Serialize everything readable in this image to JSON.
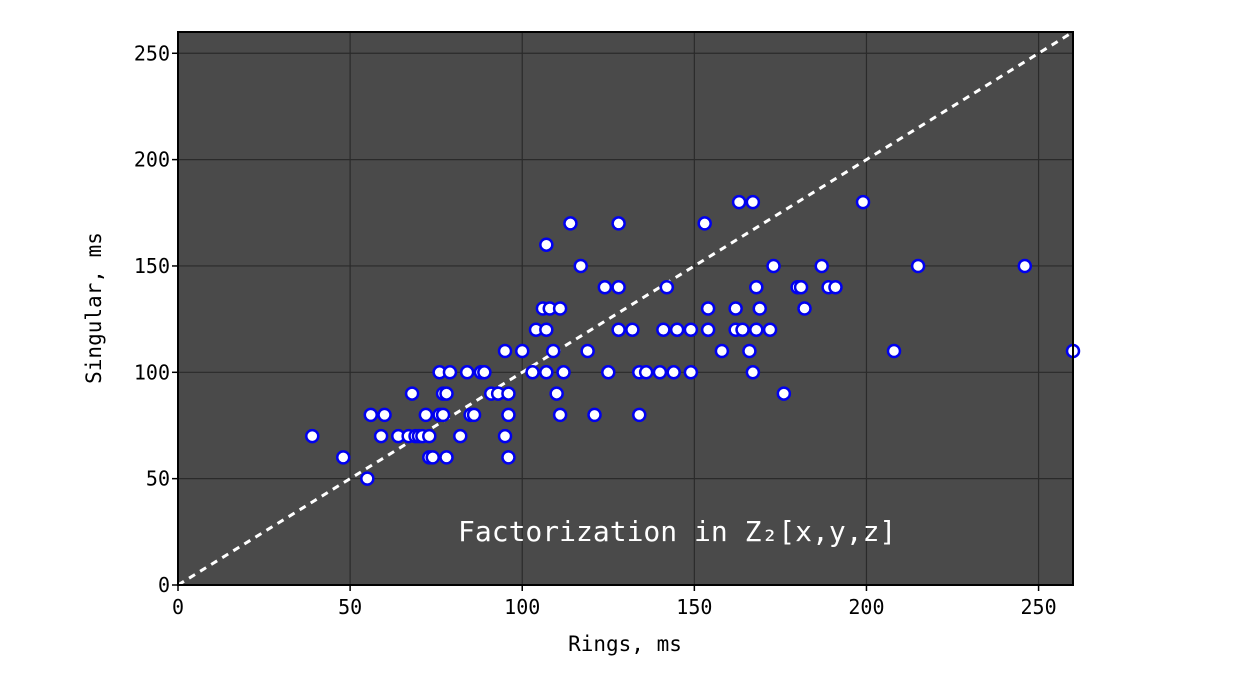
{
  "chart_data": {
    "type": "scatter",
    "xlabel": "Rings, ms",
    "ylabel": "Singular, ms",
    "annotation": "Factorization in Z₂[x,y,z]",
    "xlim": [
      0,
      260
    ],
    "ylim": [
      0,
      260
    ],
    "xticks": [
      "0",
      "50",
      "100",
      "150",
      "200",
      "250"
    ],
    "yticks": [
      "0",
      "50",
      "100",
      "150",
      "200",
      "250"
    ],
    "grid": true,
    "reference_line": "y = x",
    "colors": {
      "background": "#4a4a4a",
      "grid": "#2a2a2a",
      "marker_fill": "#ffffff",
      "marker_edge": "#0000ee",
      "reference_line": "#ffffff"
    },
    "points": [
      [
        39,
        70
      ],
      [
        48,
        60
      ],
      [
        55,
        50
      ],
      [
        56,
        80
      ],
      [
        59,
        70
      ],
      [
        60,
        80
      ],
      [
        64,
        70
      ],
      [
        67,
        70
      ],
      [
        68,
        90
      ],
      [
        69,
        70
      ],
      [
        70,
        70
      ],
      [
        71,
        70
      ],
      [
        72,
        80
      ],
      [
        73,
        70
      ],
      [
        73,
        60
      ],
      [
        74,
        60
      ],
      [
        76,
        100
      ],
      [
        76,
        80
      ],
      [
        77,
        90
      ],
      [
        77,
        80
      ],
      [
        78,
        60
      ],
      [
        78,
        90
      ],
      [
        79,
        100
      ],
      [
        82,
        70
      ],
      [
        84,
        100
      ],
      [
        85,
        80
      ],
      [
        86,
        80
      ],
      [
        88,
        100
      ],
      [
        89,
        100
      ],
      [
        91,
        90
      ],
      [
        93,
        90
      ],
      [
        95,
        70
      ],
      [
        95,
        110
      ],
      [
        96,
        90
      ],
      [
        96,
        80
      ],
      [
        96,
        60
      ],
      [
        100,
        110
      ],
      [
        103,
        100
      ],
      [
        104,
        120
      ],
      [
        106,
        130
      ],
      [
        107,
        120
      ],
      [
        107,
        100
      ],
      [
        107,
        160
      ],
      [
        108,
        130
      ],
      [
        109,
        110
      ],
      [
        110,
        90
      ],
      [
        111,
        80
      ],
      [
        111,
        130
      ],
      [
        112,
        100
      ],
      [
        114,
        170
      ],
      [
        117,
        150
      ],
      [
        119,
        110
      ],
      [
        121,
        80
      ],
      [
        124,
        140
      ],
      [
        125,
        100
      ],
      [
        128,
        140
      ],
      [
        128,
        120
      ],
      [
        128,
        170
      ],
      [
        132,
        120
      ],
      [
        134,
        100
      ],
      [
        134,
        80
      ],
      [
        136,
        100
      ],
      [
        140,
        100
      ],
      [
        141,
        120
      ],
      [
        142,
        140
      ],
      [
        144,
        100
      ],
      [
        145,
        120
      ],
      [
        149,
        120
      ],
      [
        149,
        100
      ],
      [
        153,
        170
      ],
      [
        154,
        130
      ],
      [
        154,
        120
      ],
      [
        158,
        110
      ],
      [
        162,
        130
      ],
      [
        162,
        120
      ],
      [
        163,
        180
      ],
      [
        164,
        120
      ],
      [
        166,
        110
      ],
      [
        167,
        100
      ],
      [
        167,
        180
      ],
      [
        168,
        140
      ],
      [
        168,
        120
      ],
      [
        169,
        130
      ],
      [
        172,
        120
      ],
      [
        173,
        150
      ],
      [
        176,
        90
      ],
      [
        180,
        140
      ],
      [
        181,
        140
      ],
      [
        182,
        130
      ],
      [
        187,
        150
      ],
      [
        189,
        140
      ],
      [
        191,
        140
      ],
      [
        199,
        180
      ],
      [
        208,
        110
      ],
      [
        215,
        150
      ],
      [
        246,
        150
      ],
      [
        260,
        110
      ]
    ]
  }
}
